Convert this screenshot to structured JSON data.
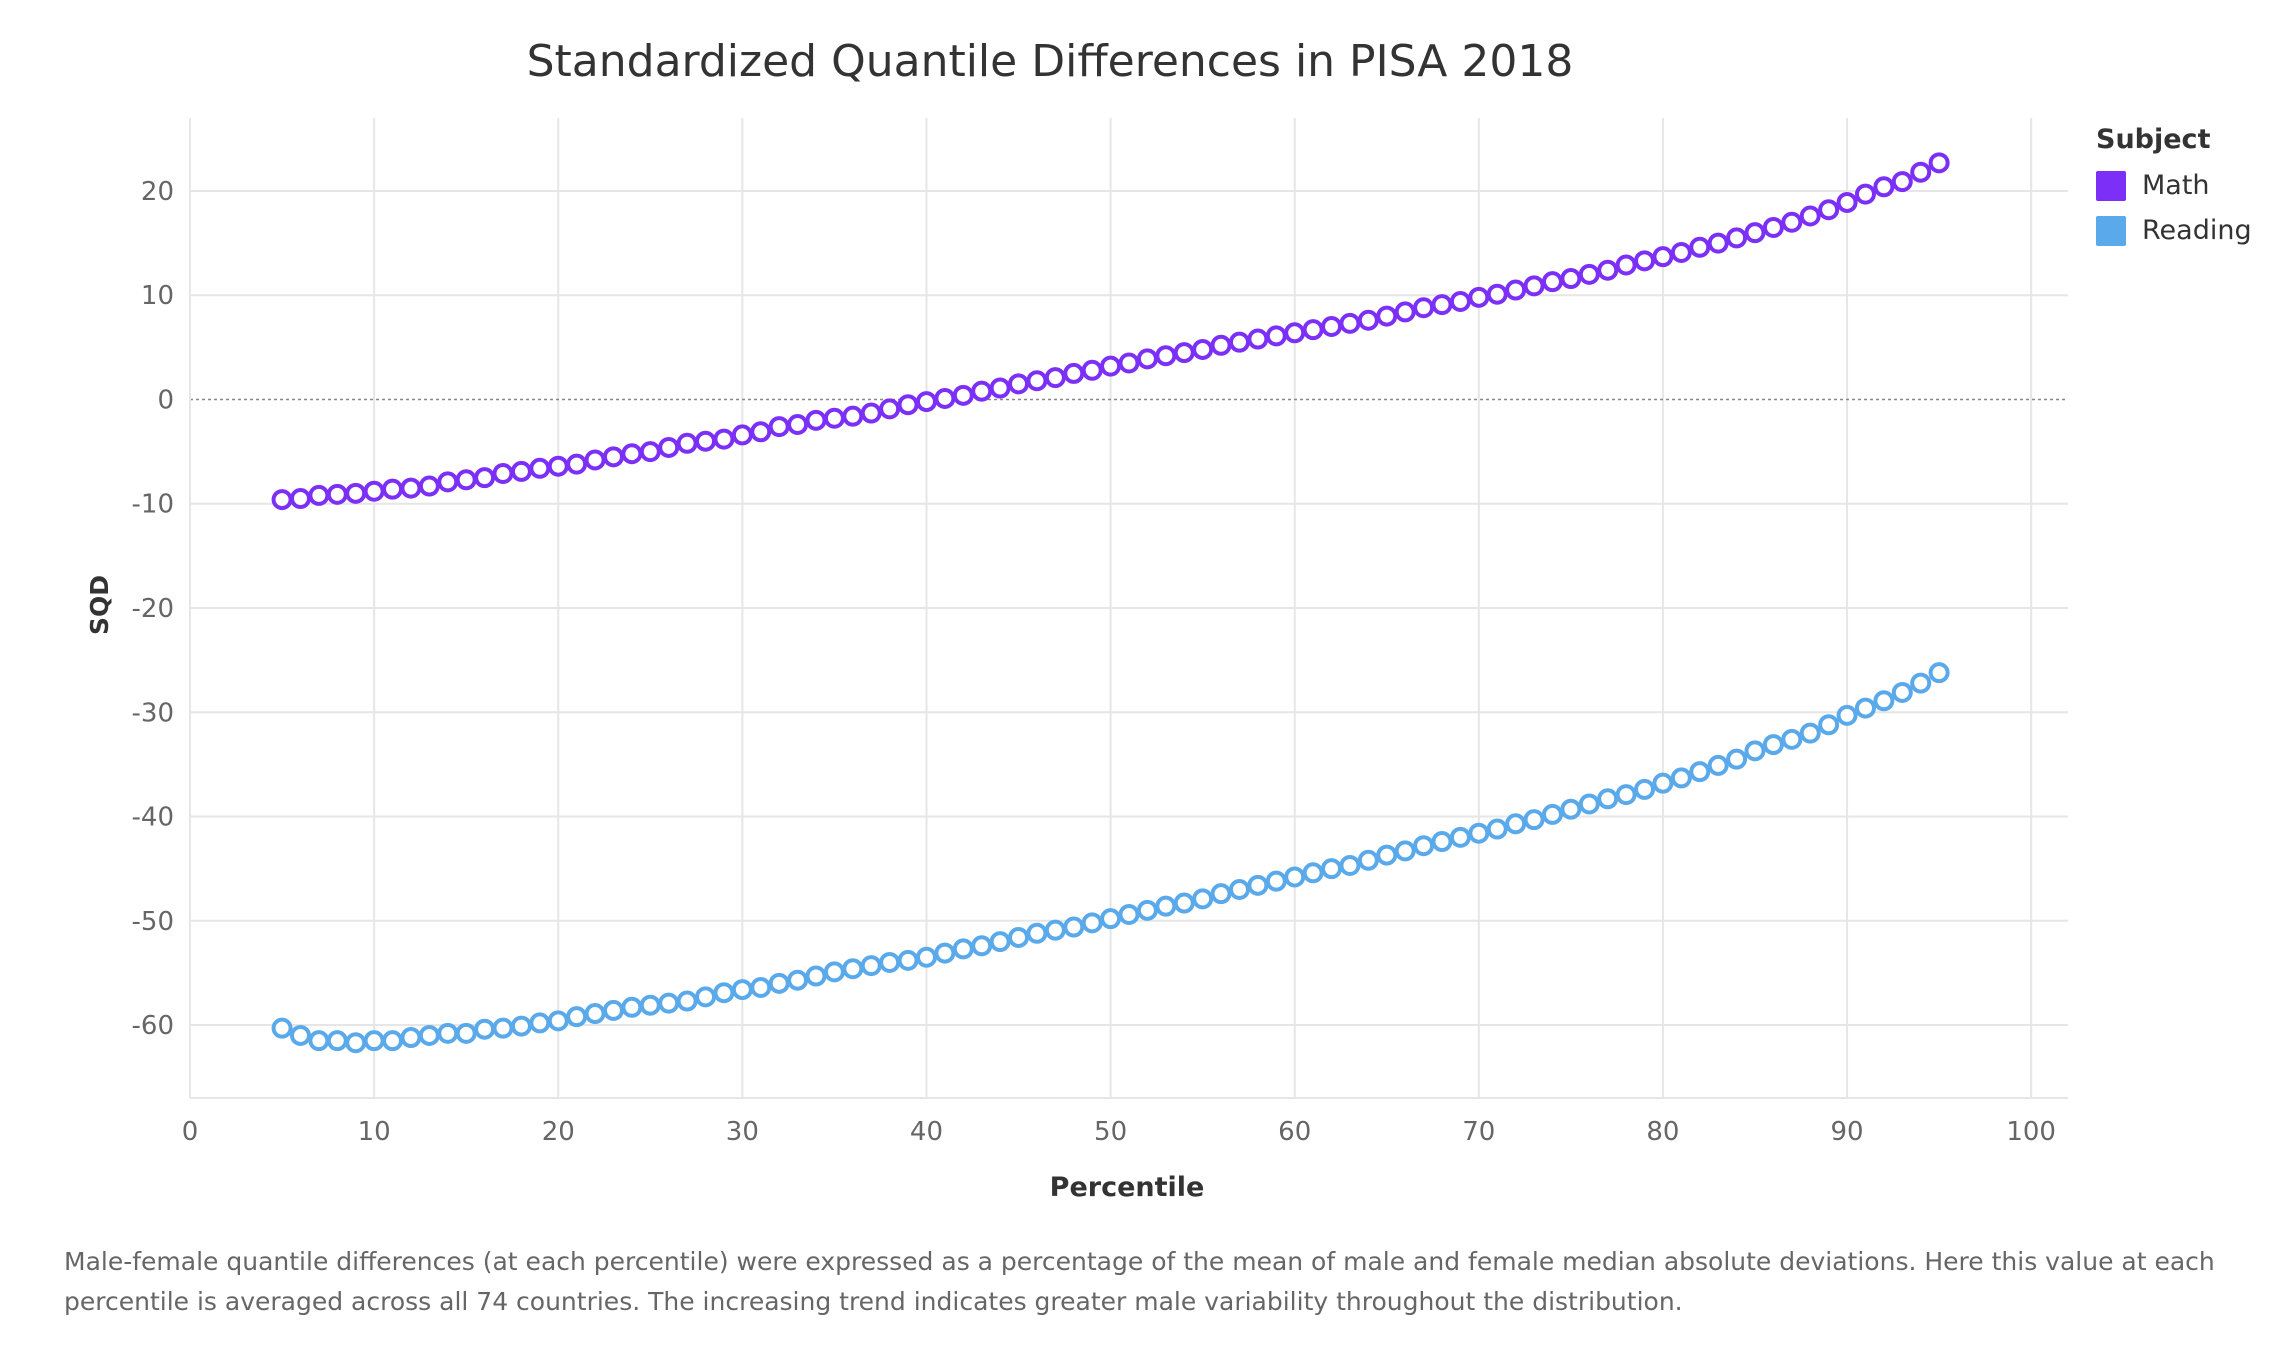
{
  "chart_data": {
    "type": "scatter",
    "title": "Standardized Quantile Differences in PISA 2018",
    "xlabel": "Percentile",
    "ylabel": "SQD",
    "xlim": [
      0,
      102
    ],
    "ylim": [
      -67,
      27
    ],
    "xticks": [
      0,
      10,
      20,
      30,
      40,
      50,
      60,
      70,
      80,
      90,
      100
    ],
    "yticks": [
      20,
      10,
      0,
      -10,
      -20,
      -30,
      -40,
      -50,
      -60
    ],
    "grid": true,
    "reference_line_y": 0,
    "legend_title": "Subject",
    "legend_position": "top-right",
    "x": [
      5,
      6,
      7,
      8,
      9,
      10,
      11,
      12,
      13,
      14,
      15,
      16,
      17,
      18,
      19,
      20,
      21,
      22,
      23,
      24,
      25,
      26,
      27,
      28,
      29,
      30,
      31,
      32,
      33,
      34,
      35,
      36,
      37,
      38,
      39,
      40,
      41,
      42,
      43,
      44,
      45,
      46,
      47,
      48,
      49,
      50,
      51,
      52,
      53,
      54,
      55,
      56,
      57,
      58,
      59,
      60,
      61,
      62,
      63,
      64,
      65,
      66,
      67,
      68,
      69,
      70,
      71,
      72,
      73,
      74,
      75,
      76,
      77,
      78,
      79,
      80,
      81,
      82,
      83,
      84,
      85,
      86,
      87,
      88,
      89,
      90,
      91,
      92,
      93,
      94,
      95
    ],
    "series": [
      {
        "name": "Math",
        "color": "#7b2ff7",
        "values": [
          -9.6,
          -9.5,
          -9.2,
          -9.1,
          -9.0,
          -8.8,
          -8.6,
          -8.5,
          -8.3,
          -7.9,
          -7.7,
          -7.5,
          -7.1,
          -6.9,
          -6.6,
          -6.4,
          -6.2,
          -5.8,
          -5.5,
          -5.2,
          -5.0,
          -4.6,
          -4.2,
          -4.0,
          -3.8,
          -3.4,
          -3.1,
          -2.6,
          -2.4,
          -2.0,
          -1.8,
          -1.6,
          -1.3,
          -0.9,
          -0.5,
          -0.2,
          0.1,
          0.4,
          0.8,
          1.1,
          1.5,
          1.8,
          2.1,
          2.5,
          2.8,
          3.2,
          3.5,
          3.9,
          4.2,
          4.5,
          4.8,
          5.2,
          5.5,
          5.8,
          6.1,
          6.4,
          6.7,
          7.0,
          7.3,
          7.6,
          8.0,
          8.4,
          8.8,
          9.1,
          9.4,
          9.8,
          10.1,
          10.5,
          10.9,
          11.3,
          11.6,
          12.0,
          12.4,
          12.9,
          13.3,
          13.7,
          14.1,
          14.6,
          15.0,
          15.5,
          16.0,
          16.5,
          17.0,
          17.6,
          18.2,
          18.9,
          19.7,
          20.4,
          20.9,
          21.8,
          22.7
        ]
      },
      {
        "name": "Reading",
        "color": "#5aa9ea",
        "values": [
          -60.3,
          -61.0,
          -61.5,
          -61.5,
          -61.7,
          -61.5,
          -61.5,
          -61.2,
          -61.0,
          -60.8,
          -60.8,
          -60.4,
          -60.3,
          -60.1,
          -59.8,
          -59.6,
          -59.2,
          -58.9,
          -58.6,
          -58.3,
          -58.1,
          -57.9,
          -57.7,
          -57.3,
          -56.9,
          -56.6,
          -56.4,
          -56.0,
          -55.7,
          -55.3,
          -54.9,
          -54.6,
          -54.3,
          -54.0,
          -53.8,
          -53.5,
          -53.1,
          -52.7,
          -52.4,
          -52.0,
          -51.6,
          -51.2,
          -50.9,
          -50.6,
          -50.2,
          -49.8,
          -49.4,
          -49.0,
          -48.6,
          -48.3,
          -47.9,
          -47.4,
          -47.0,
          -46.6,
          -46.2,
          -45.8,
          -45.4,
          -45.0,
          -44.7,
          -44.2,
          -43.7,
          -43.3,
          -42.8,
          -42.4,
          -42.0,
          -41.6,
          -41.2,
          -40.7,
          -40.3,
          -39.8,
          -39.3,
          -38.8,
          -38.3,
          -37.9,
          -37.4,
          -36.8,
          -36.3,
          -35.7,
          -35.1,
          -34.5,
          -33.7,
          -33.1,
          -32.6,
          -32.0,
          -31.2,
          -30.3,
          -29.6,
          -28.9,
          -28.1,
          -27.2,
          -26.2
        ]
      }
    ],
    "caption": "Male-female quantile differences (at each percentile) were expressed as a percentage of the mean of male and female median absolute deviations. Here this value at each percentile is averaged across all 74 countries. The increasing trend indicates greater male variability throughout the distribution."
  }
}
